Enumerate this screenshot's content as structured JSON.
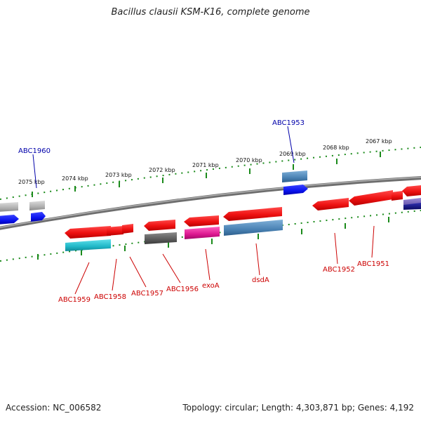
{
  "title": "Bacillus clausii KSM-K16, complete genome",
  "footer": {
    "accession": "Accession: NC_006582",
    "summary": "Topology: circular; Length: 4,303,871 bp; Genes: 4,192"
  },
  "scale_labels": [
    "2075 kbp",
    "2074 kbp",
    "2073 kbp",
    "2072 kbp",
    "2071 kbp",
    "2070 kbp",
    "2069 kbp",
    "2068 kbp",
    "2067 kbp"
  ],
  "gene_labels_top": [
    "ABC1960",
    "ABC1953"
  ],
  "gene_labels_bottom": [
    "ABC1959",
    "ABC1958",
    "ABC1957",
    "ABC1956",
    "exoA",
    "dsdA",
    "ABC1952",
    "ABC1951"
  ],
  "colors": {
    "forward_gene": "#ee1111",
    "cds_blue": "#0a12ee",
    "rna_steel": "#4a82b4",
    "grey_feature": "#b0b0b0",
    "dark_feature": "#5a5a5a",
    "magenta_feature": "#dd1890",
    "cyan_feature": "#20b8c8",
    "purple_feature": "#6a5ab0",
    "navy_feature": "#12128a",
    "tick_green": "#1a8a1a",
    "label_red": "#cc0000",
    "label_blue": "#0000aa"
  }
}
